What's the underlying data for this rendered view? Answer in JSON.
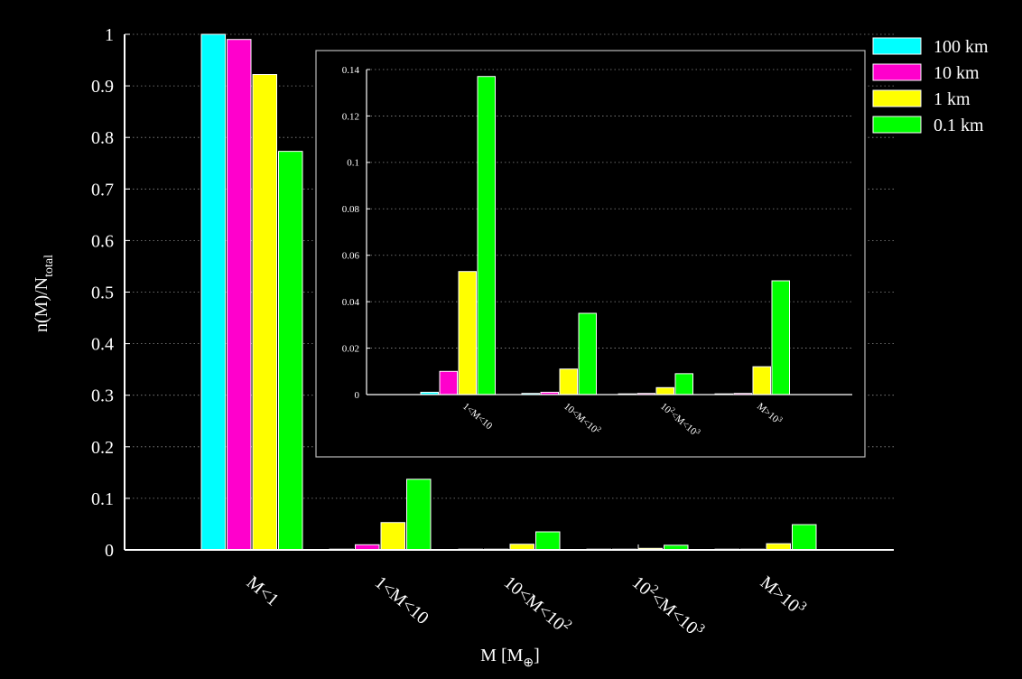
{
  "chart_data": [
    {
      "type": "bar",
      "xlabel": "M [M",
      "xlabel_sub": "⊕",
      "xlabel_end": "]",
      "ylabel": "n(M)/N",
      "ylabel_sub": "total",
      "ylim": [
        0,
        1
      ],
      "yticks": [
        "0",
        "0.1",
        "0.2",
        "0.3",
        "0.4",
        "0.5",
        "0.6",
        "0.7",
        "0.8",
        "0.9",
        "1"
      ],
      "grid": true,
      "legend_position": "top-right",
      "categories": [
        "M<1",
        "1<M<10",
        "10<M<10²",
        "10²<M<10³",
        "M>10³"
      ],
      "series": [
        {
          "name": "100 km",
          "color": "#00ffff",
          "values": [
            1.0,
            0.001,
            0.0005,
            0.0002,
            0.0002
          ]
        },
        {
          "name": "10 km",
          "color": "#ff00cc",
          "values": [
            0.99,
            0.01,
            0.001,
            0.0005,
            0.0005
          ]
        },
        {
          "name": "1 km",
          "color": "#ffff00",
          "values": [
            0.922,
            0.053,
            0.011,
            0.003,
            0.012
          ]
        },
        {
          "name": "0.1 km",
          "color": "#00ff00",
          "values": [
            0.773,
            0.137,
            0.035,
            0.009,
            0.049
          ]
        }
      ]
    },
    {
      "type": "bar",
      "ylim": [
        0,
        0.14
      ],
      "yticks": [
        "0",
        "0.02",
        "0.04",
        "0.06",
        "0.08",
        "0.1",
        "0.12",
        "0.14"
      ],
      "grid": true,
      "categories": [
        "1<M<10",
        "10<M<10²",
        "10²<M<10³",
        "M>10³"
      ],
      "series": [
        {
          "name": "100 km",
          "color": "#00ffff",
          "values": [
            0.001,
            0.0005,
            0.0002,
            0.0002
          ]
        },
        {
          "name": "10 km",
          "color": "#ff00cc",
          "values": [
            0.01,
            0.001,
            0.0005,
            0.0005
          ]
        },
        {
          "name": "1 km",
          "color": "#ffff00",
          "values": [
            0.053,
            0.011,
            0.003,
            0.012
          ]
        },
        {
          "name": "0.1 km",
          "color": "#00ff00",
          "values": [
            0.137,
            0.035,
            0.009,
            0.049
          ]
        }
      ]
    }
  ]
}
